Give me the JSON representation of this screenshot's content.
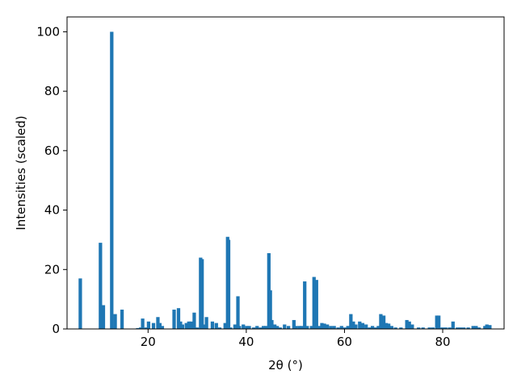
{
  "chart_data": {
    "type": "bar",
    "xlabel": "2θ (°)",
    "ylabel": "Intensities (scaled)",
    "xlim": [
      3.5,
      92.5
    ],
    "ylim": [
      0,
      105
    ],
    "xticks": [
      20,
      40,
      60,
      80
    ],
    "yticks": [
      0,
      20,
      40,
      60,
      80,
      100
    ],
    "grid": false,
    "bar_color": "#1f77b4",
    "bar_width": 0.7,
    "x": [
      6.2,
      10.3,
      10.9,
      12.6,
      13.3,
      14.7,
      17.9,
      18.5,
      18.9,
      19.6,
      20.1,
      21.1,
      22.0,
      22.4,
      22.9,
      25.3,
      26.2,
      26.6,
      27.0,
      27.8,
      28.3,
      28.8,
      29.4,
      30.0,
      30.7,
      31.0,
      31.5,
      31.9,
      33.1,
      33.9,
      34.6,
      35.7,
      36.2,
      36.4,
      36.8,
      37.7,
      38.3,
      38.6,
      39.4,
      40.1,
      40.6,
      41.5,
      42.2,
      42.9,
      43.5,
      44.0,
      44.6,
      44.9,
      45.2,
      45.8,
      46.3,
      46.9,
      47.8,
      48.6,
      49.7,
      50.1,
      50.8,
      51.3,
      51.9,
      52.4,
      53.3,
      53.8,
      54.3,
      54.8,
      55.4,
      55.9,
      56.5,
      57.2,
      57.9,
      58.7,
      59.4,
      60.1,
      60.7,
      61.3,
      61.8,
      62.3,
      63.1,
      63.7,
      64.4,
      65.1,
      65.7,
      66.3,
      66.9,
      67.4,
      68.0,
      68.5,
      69.0,
      69.6,
      70.4,
      71.5,
      72.7,
      73.2,
      73.8,
      75.1,
      76.0,
      77.3,
      78.0,
      78.8,
      79.2,
      79.9,
      80.6,
      81.4,
      82.1,
      83.0,
      83.6,
      84.3,
      85.2,
      86.2,
      86.8,
      87.4,
      88.6,
      89.0,
      89.6
    ],
    "values": [
      17,
      29,
      8,
      100,
      5,
      6.5,
      0.3,
      0.5,
      3.5,
      0.5,
      2.5,
      2,
      4,
      2,
      1,
      6.5,
      7,
      2.5,
      1.5,
      2,
      2.5,
      2.5,
      5.5,
      0.5,
      24,
      23.5,
      1.5,
      4,
      2.5,
      2,
      0.5,
      2,
      31,
      30,
      0.5,
      1.5,
      11,
      1,
      1.5,
      1,
      1,
      0.5,
      1,
      0.5,
      1,
      1,
      25.5,
      13,
      3,
      1.5,
      1,
      0.5,
      1.5,
      1,
      3,
      1,
      1,
      1,
      16,
      1,
      1,
      17.5,
      16.5,
      1,
      2,
      1.8,
      1.5,
      1,
      1,
      0.5,
      1,
      0.5,
      1,
      5,
      2.5,
      1.5,
      2.5,
      2,
      1.5,
      0.5,
      1,
      0.5,
      1,
      5,
      4.5,
      2,
      1.8,
      1,
      0.5,
      0.5,
      3,
      2.5,
      1.5,
      0.5,
      0.5,
      0.5,
      0.5,
      4.5,
      4.5,
      0.5,
      0.5,
      0.5,
      2.5,
      0.5,
      0.5,
      0.5,
      0.5,
      1,
      1,
      0.5,
      1,
      1.5,
      1.3
    ]
  }
}
